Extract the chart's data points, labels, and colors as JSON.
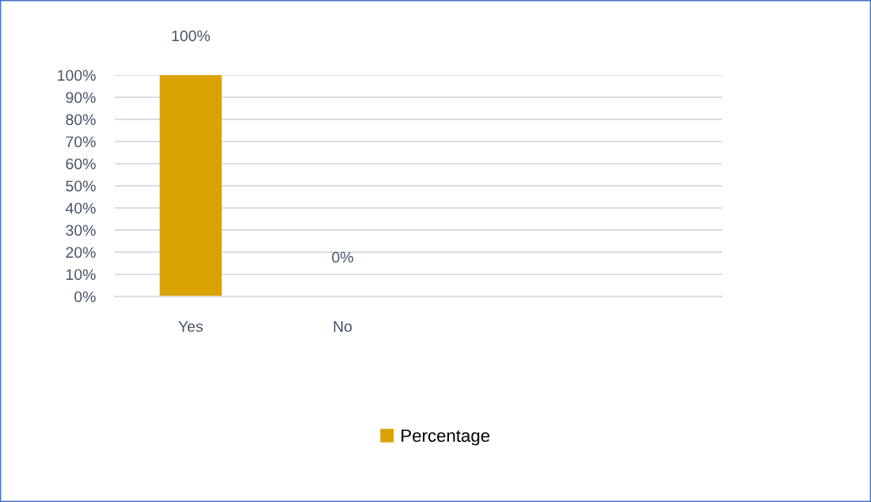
{
  "chart_data": {
    "type": "bar",
    "categories": [
      "Yes",
      "No",
      null,
      null
    ],
    "series": [
      {
        "name": "Percentage",
        "color": "#daa200",
        "values": [
          100,
          0,
          null,
          null
        ]
      }
    ],
    "value_labels": [
      "100%",
      "0%",
      null,
      null
    ],
    "ylim": [
      0,
      100
    ],
    "yticks": [
      {
        "value": 0,
        "label": "0%"
      },
      {
        "value": 10,
        "label": "10%"
      },
      {
        "value": 20,
        "label": "20%"
      },
      {
        "value": 30,
        "label": "30%"
      },
      {
        "value": 40,
        "label": "40%"
      },
      {
        "value": 50,
        "label": "50%"
      },
      {
        "value": 60,
        "label": "60%"
      },
      {
        "value": 70,
        "label": "70%"
      },
      {
        "value": 80,
        "label": "80%"
      },
      {
        "value": 90,
        "label": "90%"
      },
      {
        "value": 100,
        "label": "100%"
      }
    ],
    "grid": "y",
    "legend": "bottom"
  }
}
